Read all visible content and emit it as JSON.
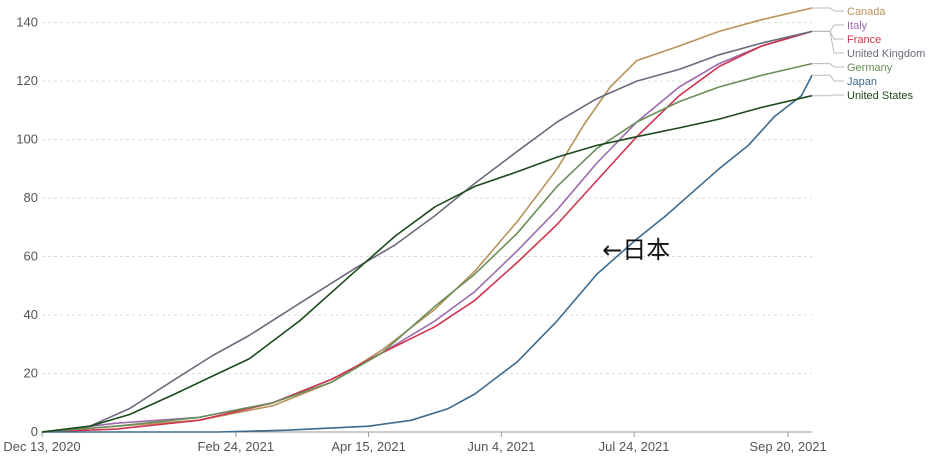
{
  "chart_data": {
    "type": "line",
    "title": "",
    "xlabel": "",
    "ylabel": "",
    "x_start": "2020-12-13",
    "x_end": "2021-09-29",
    "ylim": [
      0,
      145
    ],
    "y_ticks": [
      0,
      20,
      40,
      60,
      80,
      100,
      120,
      140
    ],
    "x_ticks": [
      {
        "date": "2020-12-13",
        "label": "Dec 13, 2020"
      },
      {
        "date": "2021-02-24",
        "label": "Feb 24, 2021"
      },
      {
        "date": "2021-04-15",
        "label": "Apr 15, 2021"
      },
      {
        "date": "2021-06-04",
        "label": "Jun 4, 2021"
      },
      {
        "date": "2021-07-24",
        "label": "Jul 24, 2021"
      },
      {
        "date": "2021-09-20",
        "label": "Sep 20, 2021"
      }
    ],
    "grid": true,
    "legend": "right",
    "annotation": {
      "text": "←日本",
      "date": "2021-07-12",
      "value": 56
    },
    "series": [
      {
        "name": "Canada",
        "color": "#b8925b",
        "end_value": 145,
        "points": [
          [
            "2020-12-13",
            0
          ],
          [
            "2021-01-10",
            2
          ],
          [
            "2021-02-10",
            4
          ],
          [
            "2021-03-10",
            9
          ],
          [
            "2021-04-01",
            17
          ],
          [
            "2021-04-20",
            28
          ],
          [
            "2021-05-10",
            42
          ],
          [
            "2021-05-25",
            55
          ],
          [
            "2021-06-10",
            72
          ],
          [
            "2021-06-25",
            90
          ],
          [
            "2021-07-05",
            105
          ],
          [
            "2021-07-15",
            118
          ],
          [
            "2021-07-25",
            127
          ],
          [
            "2021-08-10",
            132
          ],
          [
            "2021-08-25",
            137
          ],
          [
            "2021-09-10",
            141
          ],
          [
            "2021-09-29",
            145
          ]
        ]
      },
      {
        "name": "Italy",
        "color": "#9b6bad",
        "end_value": 137,
        "points": [
          [
            "2020-12-13",
            0
          ],
          [
            "2021-01-10",
            3
          ],
          [
            "2021-02-10",
            5
          ],
          [
            "2021-03-10",
            10
          ],
          [
            "2021-04-01",
            18
          ],
          [
            "2021-04-20",
            27
          ],
          [
            "2021-05-10",
            38
          ],
          [
            "2021-05-25",
            48
          ],
          [
            "2021-06-10",
            62
          ],
          [
            "2021-06-25",
            76
          ],
          [
            "2021-07-10",
            92
          ],
          [
            "2021-07-25",
            106
          ],
          [
            "2021-08-10",
            118
          ],
          [
            "2021-08-25",
            126
          ],
          [
            "2021-09-10",
            132
          ],
          [
            "2021-09-29",
            137
          ]
        ]
      },
      {
        "name": "France",
        "color": "#d0344e",
        "end_value": 137,
        "points": [
          [
            "2020-12-13",
            0
          ],
          [
            "2021-01-10",
            1
          ],
          [
            "2021-02-10",
            4
          ],
          [
            "2021-03-10",
            10
          ],
          [
            "2021-04-01",
            18
          ],
          [
            "2021-04-20",
            27
          ],
          [
            "2021-05-10",
            36
          ],
          [
            "2021-05-25",
            45
          ],
          [
            "2021-06-10",
            58
          ],
          [
            "2021-06-25",
            71
          ],
          [
            "2021-07-10",
            86
          ],
          [
            "2021-07-25",
            101
          ],
          [
            "2021-08-10",
            115
          ],
          [
            "2021-08-25",
            125
          ],
          [
            "2021-09-10",
            132
          ],
          [
            "2021-09-29",
            137
          ]
        ]
      },
      {
        "name": "United Kingdom",
        "color": "#6b6b7c",
        "end_value": 137,
        "points": [
          [
            "2020-12-13",
            0
          ],
          [
            "2020-12-31",
            2
          ],
          [
            "2021-01-15",
            8
          ],
          [
            "2021-02-01",
            18
          ],
          [
            "2021-02-15",
            26
          ],
          [
            "2021-03-01",
            33
          ],
          [
            "2021-03-20",
            44
          ],
          [
            "2021-04-10",
            56
          ],
          [
            "2021-04-25",
            64
          ],
          [
            "2021-05-10",
            74
          ],
          [
            "2021-05-25",
            85
          ],
          [
            "2021-06-10",
            96
          ],
          [
            "2021-06-25",
            106
          ],
          [
            "2021-07-10",
            114
          ],
          [
            "2021-07-25",
            120
          ],
          [
            "2021-08-10",
            124
          ],
          [
            "2021-08-25",
            129
          ],
          [
            "2021-09-10",
            133
          ],
          [
            "2021-09-29",
            137
          ]
        ]
      },
      {
        "name": "Germany",
        "color": "#6a8e5a",
        "end_value": 126,
        "points": [
          [
            "2020-12-13",
            0
          ],
          [
            "2021-01-10",
            2
          ],
          [
            "2021-02-10",
            5
          ],
          [
            "2021-03-10",
            10
          ],
          [
            "2021-04-01",
            17
          ],
          [
            "2021-04-20",
            27
          ],
          [
            "2021-05-10",
            43
          ],
          [
            "2021-05-25",
            54
          ],
          [
            "2021-06-10",
            68
          ],
          [
            "2021-06-25",
            84
          ],
          [
            "2021-07-10",
            97
          ],
          [
            "2021-07-25",
            106
          ],
          [
            "2021-08-10",
            113
          ],
          [
            "2021-08-25",
            118
          ],
          [
            "2021-09-10",
            122
          ],
          [
            "2021-09-29",
            126
          ]
        ]
      },
      {
        "name": "Japan",
        "color": "#3c6a8e",
        "end_value": 122,
        "points": [
          [
            "2020-12-13",
            0
          ],
          [
            "2021-02-17",
            0
          ],
          [
            "2021-03-15",
            0.6
          ],
          [
            "2021-04-15",
            2
          ],
          [
            "2021-05-01",
            4
          ],
          [
            "2021-05-15",
            8
          ],
          [
            "2021-05-25",
            13
          ],
          [
            "2021-06-10",
            24
          ],
          [
            "2021-06-25",
            38
          ],
          [
            "2021-07-10",
            54
          ],
          [
            "2021-07-25",
            66
          ],
          [
            "2021-08-05",
            74
          ],
          [
            "2021-08-15",
            82
          ],
          [
            "2021-08-25",
            90
          ],
          [
            "2021-09-05",
            98
          ],
          [
            "2021-09-15",
            108
          ],
          [
            "2021-09-25",
            115
          ],
          [
            "2021-09-29",
            122
          ]
        ]
      },
      {
        "name": "United States",
        "color": "#1c4a1c",
        "end_value": 115,
        "points": [
          [
            "2020-12-13",
            0
          ],
          [
            "2020-12-31",
            2
          ],
          [
            "2021-01-15",
            6
          ],
          [
            "2021-02-01",
            13
          ],
          [
            "2021-02-15",
            19
          ],
          [
            "2021-03-01",
            25
          ],
          [
            "2021-03-20",
            38
          ],
          [
            "2021-04-10",
            55
          ],
          [
            "2021-04-25",
            67
          ],
          [
            "2021-05-10",
            77
          ],
          [
            "2021-05-25",
            84
          ],
          [
            "2021-06-10",
            89
          ],
          [
            "2021-06-25",
            94
          ],
          [
            "2021-07-10",
            98
          ],
          [
            "2021-07-25",
            101
          ],
          [
            "2021-08-10",
            104
          ],
          [
            "2021-08-25",
            107
          ],
          [
            "2021-09-10",
            111
          ],
          [
            "2021-09-29",
            115
          ]
        ]
      }
    ]
  }
}
